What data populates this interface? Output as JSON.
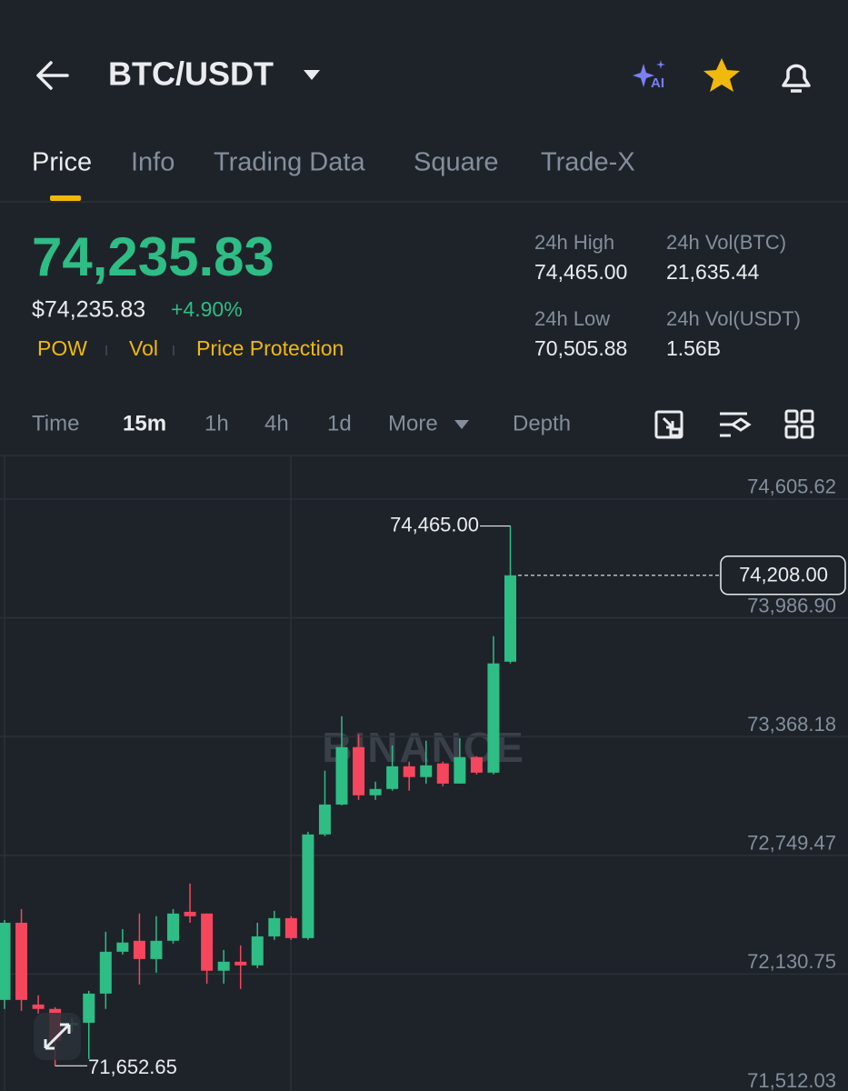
{
  "header": {
    "pair": "BTC/USDT",
    "ai_badge": "AI"
  },
  "tabs": [
    "Price",
    "Info",
    "Trading Data",
    "Square",
    "Trade-X"
  ],
  "price": {
    "last": "74,235.83",
    "fiat": "$74,235.83",
    "change": "+4.90%",
    "tags": [
      "POW",
      "Vol",
      "Price Protection"
    ]
  },
  "stats": [
    {
      "label": "24h High",
      "value": "74,465.00"
    },
    {
      "label": "24h Vol(BTC)",
      "value": "21,635.44"
    },
    {
      "label": "24h Low",
      "value": "70,505.88"
    },
    {
      "label": "24h Vol(USDT)",
      "value": "1.56B"
    }
  ],
  "intervals": [
    "Time",
    "15m",
    "1h",
    "4h",
    "1d",
    "More",
    "Depth"
  ],
  "chart_data": {
    "type": "candlestick",
    "watermark": "BINANCE",
    "up_color": "#2ebd85",
    "down_color": "#f6465d",
    "open": [
      71996,
      72398,
      71972,
      71949,
      71863,
      71877,
      72029,
      72247,
      72304,
      72209,
      72304,
      72455,
      72446,
      72148,
      72195,
      72176,
      72327,
      72422,
      72318,
      72858,
      73014,
      73313,
      73062,
      73095,
      73213,
      73157,
      73228,
      73123,
      73261,
      73180,
      73758
    ],
    "high": [
      72412,
      72469,
      72020,
      71958,
      71901,
      72043,
      72351,
      72365,
      72446,
      72432,
      72469,
      72602,
      72446,
      72256,
      72280,
      72398,
      72460,
      72432,
      72872,
      73190,
      73474,
      73379,
      73133,
      73322,
      73237,
      73346,
      73237,
      73360,
      73266,
      73891,
      74465.0
    ],
    "low": [
      71949,
      71939,
      71925,
      71652.65,
      71830,
      71688,
      71949,
      72233,
      72076,
      72138,
      72290,
      72398,
      72081,
      72081,
      72053,
      72162,
      72309,
      72309,
      72309,
      72849,
      73010,
      73038,
      73038,
      73086,
      73086,
      73123,
      73109,
      73123,
      73171,
      73171,
      73749
    ],
    "close": [
      72398,
      71996,
      71949,
      71783,
      71877,
      72029,
      72247,
      72295,
      72209,
      72304,
      72446,
      72432,
      72148,
      72195,
      72176,
      72327,
      72422,
      72318,
      72858,
      73014,
      73313,
      73062,
      73095,
      73213,
      73157,
      73218,
      73123,
      73261,
      73180,
      73749,
      74208.0
    ],
    "ylim": [
      71512.03,
      74837
    ],
    "yticks": [
      {
        "value": 71512.03,
        "label": "71,512.03"
      },
      {
        "value": 72130.75,
        "label": "72,130.75"
      },
      {
        "value": 72749.47,
        "label": "72,749.47"
      },
      {
        "value": 73368.18,
        "label": "73,368.18"
      },
      {
        "value": 73986.9,
        "label": "73,986.90"
      },
      {
        "value": 74605.62,
        "label": "74,605.62"
      }
    ],
    "grid": true,
    "high_marker": {
      "value": 74465.0,
      "label": "74,465.00"
    },
    "low_marker": {
      "value": 71652.65,
      "label": "71,652.65"
    },
    "last_price": {
      "value": 74208.0,
      "label": "74,208.00"
    }
  }
}
